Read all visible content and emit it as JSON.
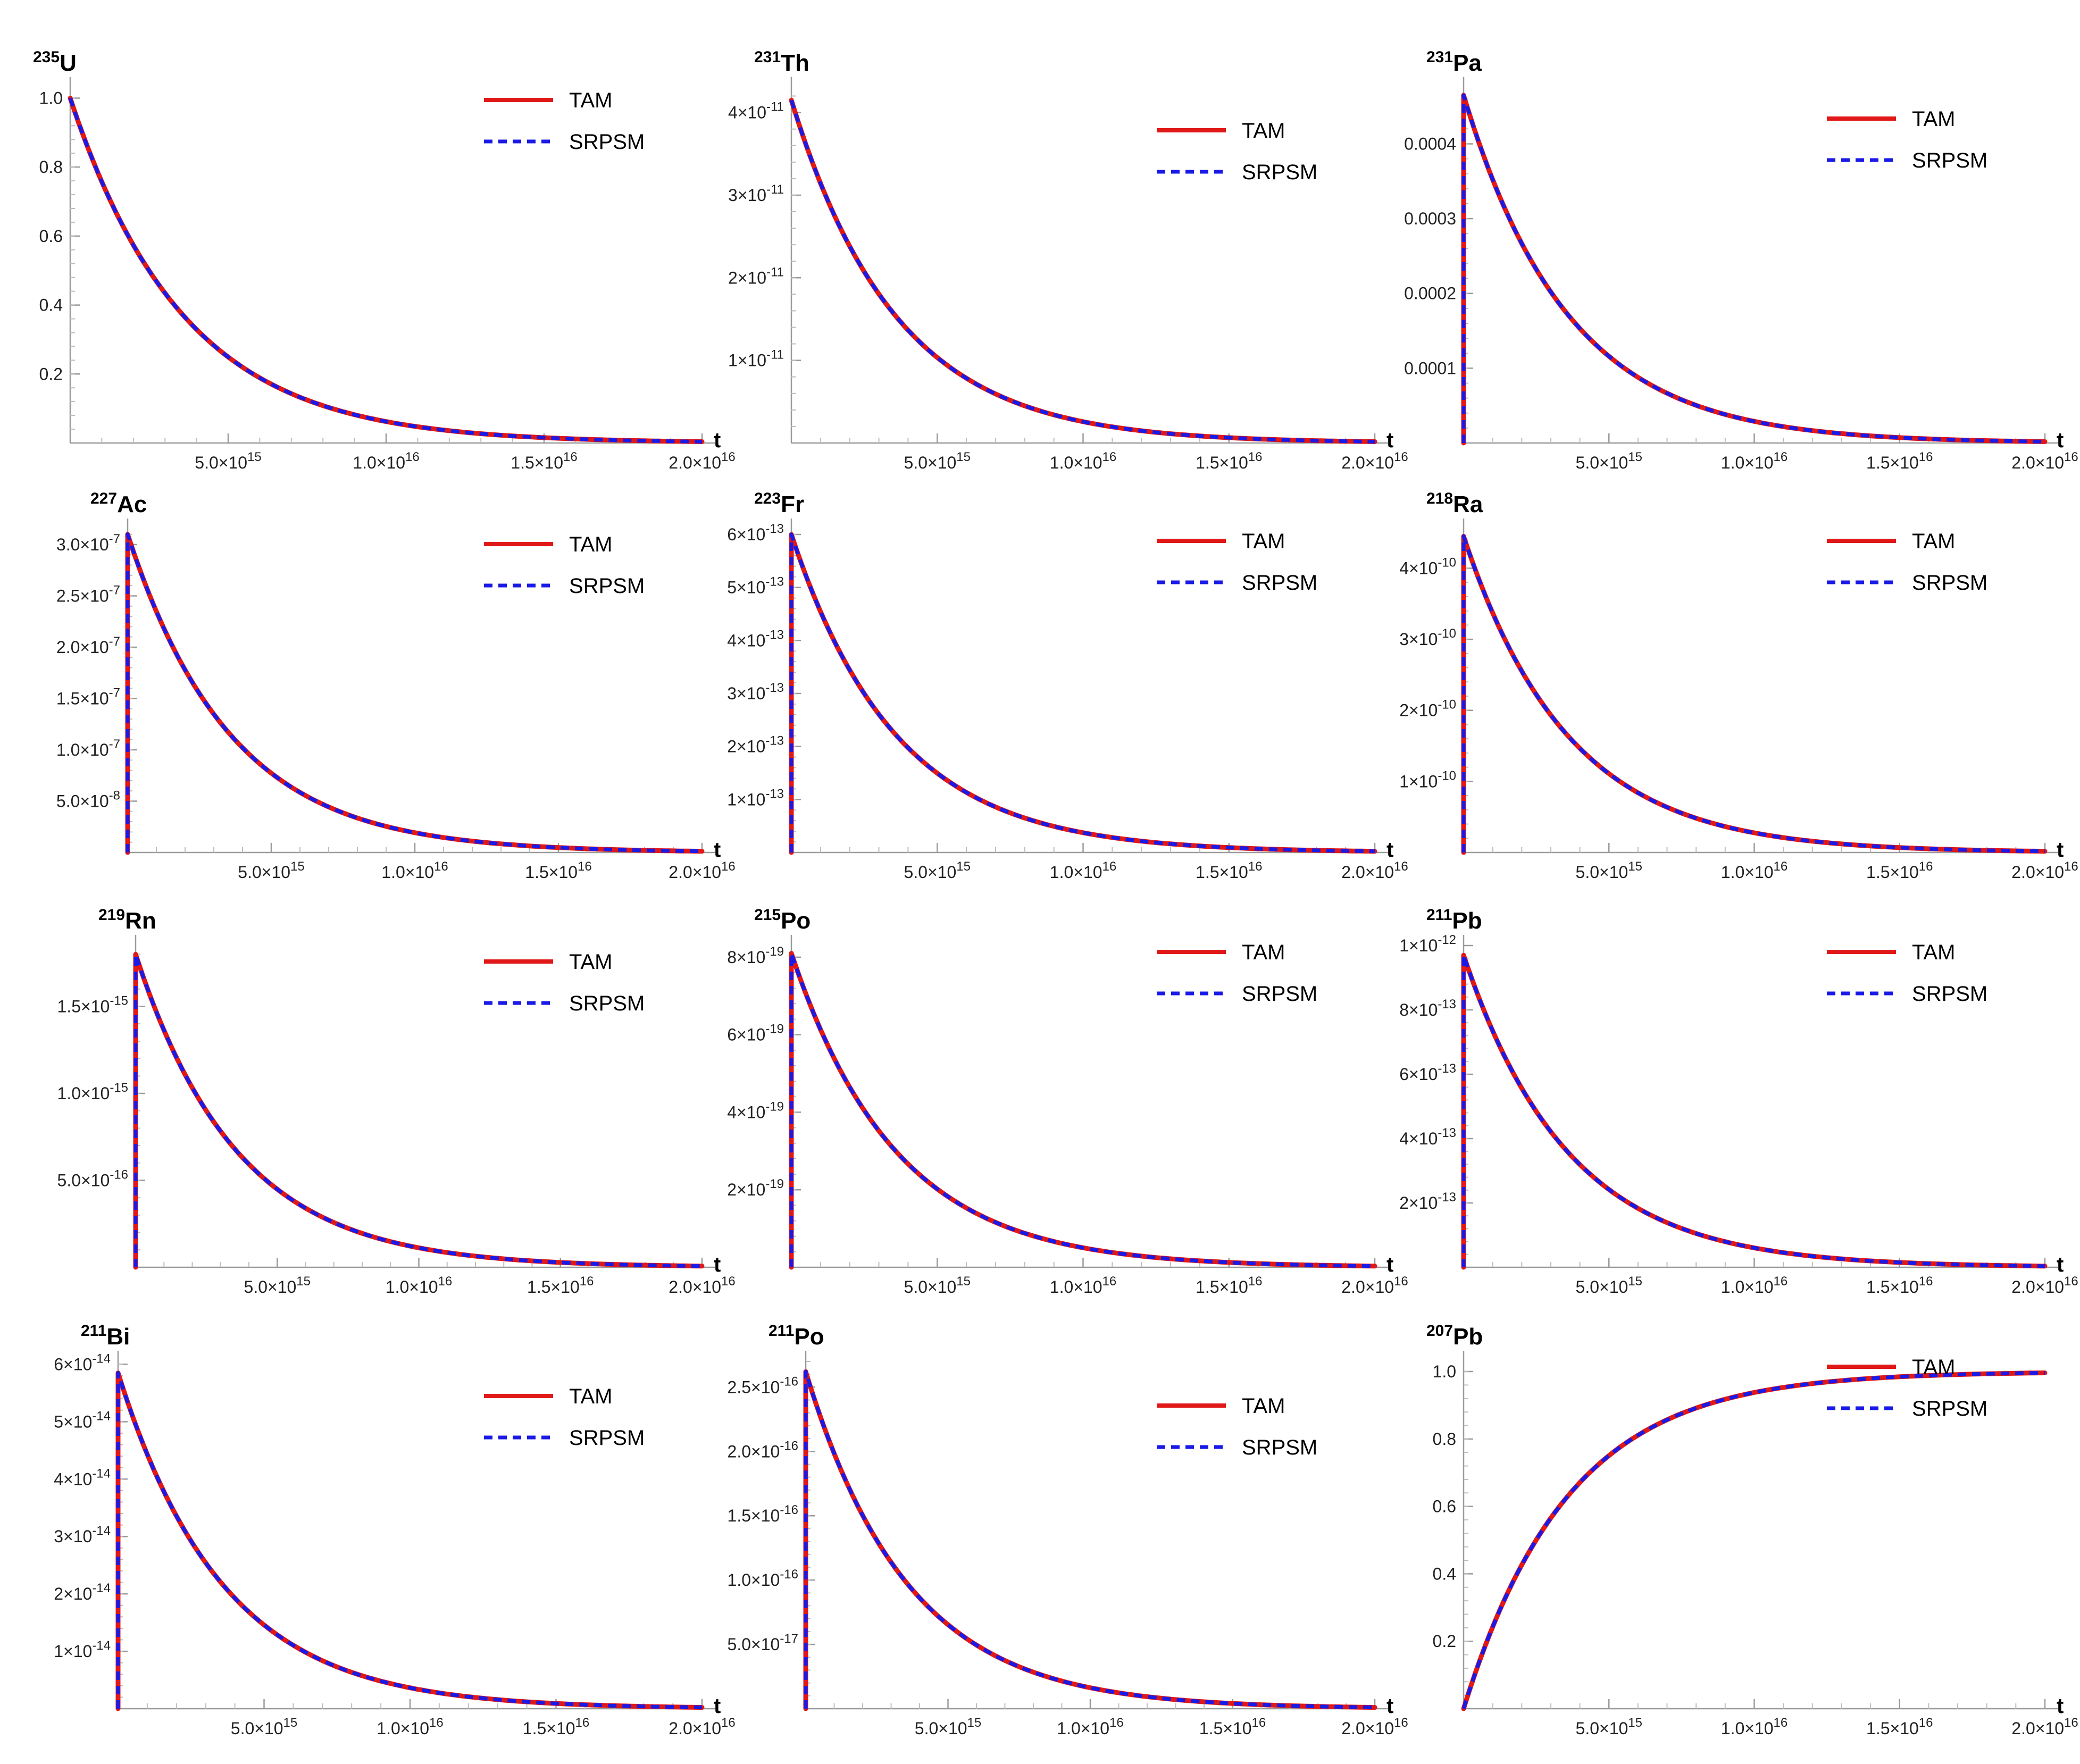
{
  "chart_data": [
    {
      "type": "line",
      "title_mass": "235",
      "title_elem": "U",
      "xlabel": "t",
      "legend": "top-right",
      "grid": false,
      "xlim": [
        0,
        2e+16
      ],
      "xticks": [
        "5.0×10^15",
        "1.0×10^16",
        "1.5×10^16",
        "2.0×10^16"
      ],
      "yticks": [
        {
          "v": 0.2,
          "m": "0.2"
        },
        {
          "v": 0.4,
          "m": "0.4"
        },
        {
          "v": 0.6,
          "m": "0.6"
        },
        {
          "v": 0.8,
          "m": "0.8"
        },
        {
          "v": 1.0,
          "m": "1.0"
        }
      ],
      "ylim": [
        0,
        1.03
      ],
      "peak": 1.0,
      "shape": "decay",
      "series": [
        {
          "name": "TAM",
          "color": "#e01818"
        },
        {
          "name": "SRPSM",
          "color": "#1a1ae6"
        }
      ]
    },
    {
      "type": "line",
      "title_mass": "231",
      "title_elem": "Th",
      "xlabel": "t",
      "legend": "top-right",
      "grid": false,
      "xlim": [
        0,
        2e+16
      ],
      "xticks": [
        "5.0×10^15",
        "1.0×10^16",
        "1.5×10^16",
        "2.0×10^16"
      ],
      "yticks": [
        {
          "v": 1e-11,
          "m": "1",
          "e": "-11"
        },
        {
          "v": 2e-11,
          "m": "2",
          "e": "-11"
        },
        {
          "v": 3e-11,
          "m": "3",
          "e": "-11"
        },
        {
          "v": 4e-11,
          "m": "4",
          "e": "-11"
        }
      ],
      "ylim": [
        0,
        4.3e-11
      ],
      "peak": 4.15e-11,
      "shape": "decay",
      "series": [
        {
          "name": "TAM",
          "color": "#e01818"
        },
        {
          "name": "SRPSM",
          "color": "#1a1ae6"
        }
      ]
    },
    {
      "type": "line",
      "title_mass": "231",
      "title_elem": "Pa",
      "xlabel": "t",
      "legend": "top-right",
      "grid": false,
      "xlim": [
        0,
        2e+16
      ],
      "xticks": [
        "5.0×10^15",
        "1.0×10^16",
        "1.5×10^16",
        "2.0×10^16"
      ],
      "yticks": [
        {
          "v": 0.0001,
          "m": "0.0001"
        },
        {
          "v": 0.0002,
          "m": "0.0002"
        },
        {
          "v": 0.0003,
          "m": "0.0003"
        },
        {
          "v": 0.0004,
          "m": "0.0004"
        }
      ],
      "ylim": [
        0,
        0.000475
      ],
      "peak": 0.000465,
      "shape": "spike",
      "series": [
        {
          "name": "TAM",
          "color": "#e01818"
        },
        {
          "name": "SRPSM",
          "color": "#1a1ae6"
        }
      ]
    },
    {
      "type": "line",
      "title_mass": "227",
      "title_elem": "Ac",
      "xlabel": "t",
      "legend": "top-right",
      "grid": false,
      "xlim": [
        0,
        2e+16
      ],
      "xticks": [
        "5.0×10^15",
        "1.0×10^16",
        "1.5×10^16",
        "2.0×10^16"
      ],
      "yticks": [
        {
          "v": 5e-08,
          "m": "5.0",
          "e": "-8"
        },
        {
          "v": 1e-07,
          "m": "1.0",
          "e": "-7"
        },
        {
          "v": 1.5e-07,
          "m": "1.5",
          "e": "-7"
        },
        {
          "v": 2e-07,
          "m": "2.0",
          "e": "-7"
        },
        {
          "v": 2.5e-07,
          "m": "2.5",
          "e": "-7"
        },
        {
          "v": 3e-07,
          "m": "3.0",
          "e": "-7"
        }
      ],
      "ylim": [
        0,
        3.15e-07
      ],
      "peak": 3.1e-07,
      "shape": "spike",
      "series": [
        {
          "name": "TAM",
          "color": "#e01818"
        },
        {
          "name": "SRPSM",
          "color": "#1a1ae6"
        }
      ]
    },
    {
      "type": "line",
      "title_mass": "223",
      "title_elem": "Fr",
      "xlabel": "t",
      "legend": "top-right",
      "grid": false,
      "xlim": [
        0,
        2e+16
      ],
      "xticks": [
        "5.0×10^15",
        "1.0×10^16",
        "1.5×10^16",
        "2.0×10^16"
      ],
      "yticks": [
        {
          "v": 1e-13,
          "m": "1",
          "e": "-13"
        },
        {
          "v": 2e-13,
          "m": "2",
          "e": "-13"
        },
        {
          "v": 3e-13,
          "m": "3",
          "e": "-13"
        },
        {
          "v": 4e-13,
          "m": "4",
          "e": "-13"
        },
        {
          "v": 5e-13,
          "m": "5",
          "e": "-13"
        },
        {
          "v": 6e-13,
          "m": "6",
          "e": "-13"
        }
      ],
      "ylim": [
        0,
        6.1e-13
      ],
      "peak": 6e-13,
      "shape": "spike",
      "series": [
        {
          "name": "TAM",
          "color": "#e01818"
        },
        {
          "name": "SRPSM",
          "color": "#1a1ae6"
        }
      ]
    },
    {
      "type": "line",
      "title_mass": "218",
      "title_elem": "Ra",
      "xlabel": "t",
      "legend": "top-right",
      "grid": false,
      "xlim": [
        0,
        2e+16
      ],
      "xticks": [
        "5.0×10^15",
        "1.0×10^16",
        "1.5×10^16",
        "2.0×10^16"
      ],
      "yticks": [
        {
          "v": 1e-10,
          "m": "1",
          "e": "-10"
        },
        {
          "v": 2e-10,
          "m": "2",
          "e": "-10"
        },
        {
          "v": 3e-10,
          "m": "3",
          "e": "-10"
        },
        {
          "v": 4e-10,
          "m": "4",
          "e": "-10"
        }
      ],
      "ylim": [
        0,
        4.55e-10
      ],
      "peak": 4.45e-10,
      "shape": "spike",
      "series": [
        {
          "name": "TAM",
          "color": "#e01818"
        },
        {
          "name": "SRPSM",
          "color": "#1a1ae6"
        }
      ]
    },
    {
      "type": "line",
      "title_mass": "219",
      "title_elem": "Rn",
      "xlabel": "t",
      "legend": "top-right",
      "grid": false,
      "xlim": [
        0,
        2e+16
      ],
      "xticks": [
        "5.0×10^15",
        "1.0×10^16",
        "1.5×10^16",
        "2.0×10^16"
      ],
      "yticks": [
        {
          "v": 5e-16,
          "m": "5.0",
          "e": "-16"
        },
        {
          "v": 1e-15,
          "m": "1.0",
          "e": "-15"
        },
        {
          "v": 1.5e-15,
          "m": "1.5",
          "e": "-15"
        }
      ],
      "ylim": [
        0,
        1.85e-15
      ],
      "peak": 1.8e-15,
      "shape": "spike",
      "series": [
        {
          "name": "TAM",
          "color": "#e01818"
        },
        {
          "name": "SRPSM",
          "color": "#1a1ae6"
        }
      ]
    },
    {
      "type": "line",
      "title_mass": "215",
      "title_elem": "Po",
      "xlabel": "t",
      "legend": "top-right",
      "grid": false,
      "xlim": [
        0,
        2e+16
      ],
      "xticks": [
        "5.0×10^15",
        "1.0×10^16",
        "1.5×10^16",
        "2.0×10^16"
      ],
      "yticks": [
        {
          "v": 2e-19,
          "m": "2",
          "e": "-19"
        },
        {
          "v": 4e-19,
          "m": "4",
          "e": "-19"
        },
        {
          "v": 6e-19,
          "m": "6",
          "e": "-19"
        },
        {
          "v": 8e-19,
          "m": "8",
          "e": "-19"
        }
      ],
      "ylim": [
        0,
        8.3e-19
      ],
      "peak": 8.1e-19,
      "shape": "spike",
      "series": [
        {
          "name": "TAM",
          "color": "#e01818"
        },
        {
          "name": "SRPSM",
          "color": "#1a1ae6"
        }
      ]
    },
    {
      "type": "line",
      "title_mass": "211",
      "title_elem": "Pb",
      "xlabel": "t",
      "legend": "top-right",
      "grid": false,
      "xlim": [
        0,
        2e+16
      ],
      "xticks": [
        "5.0×10^15",
        "1.0×10^16",
        "1.5×10^16",
        "2.0×10^16"
      ],
      "yticks": [
        {
          "v": 2e-13,
          "m": "2",
          "e": "-13"
        },
        {
          "v": 4e-13,
          "m": "4",
          "e": "-13"
        },
        {
          "v": 6e-13,
          "m": "6",
          "e": "-13"
        },
        {
          "v": 8e-13,
          "m": "8",
          "e": "-13"
        },
        {
          "v": 1e-12,
          "m": "1",
          "e": "-12"
        }
      ],
      "ylim": [
        0,
        1e-12
      ],
      "peak": 9.7e-13,
      "shape": "spike",
      "series": [
        {
          "name": "TAM",
          "color": "#e01818"
        },
        {
          "name": "SRPSM",
          "color": "#1a1ae6"
        }
      ]
    },
    {
      "type": "line",
      "title_mass": "211",
      "title_elem": "Bi",
      "xlabel": "t",
      "legend": "top-right",
      "grid": false,
      "xlim": [
        0,
        2e+16
      ],
      "xticks": [
        "5.0×10^15",
        "1.0×10^16",
        "1.5×10^16",
        "2.0×10^16"
      ],
      "yticks": [
        {
          "v": 1e-14,
          "m": "1",
          "e": "-14"
        },
        {
          "v": 2e-14,
          "m": "2",
          "e": "-14"
        },
        {
          "v": 3e-14,
          "m": "3",
          "e": "-14"
        },
        {
          "v": 4e-14,
          "m": "4",
          "e": "-14"
        },
        {
          "v": 5e-14,
          "m": "5",
          "e": "-14"
        },
        {
          "v": 6e-14,
          "m": "6",
          "e": "-14"
        }
      ],
      "ylim": [
        0,
        6.05e-14
      ],
      "peak": 5.85e-14,
      "shape": "spike",
      "series": [
        {
          "name": "TAM",
          "color": "#e01818"
        },
        {
          "name": "SRPSM",
          "color": "#1a1ae6"
        }
      ]
    },
    {
      "type": "line",
      "title_mass": "211",
      "title_elem": "Po",
      "xlabel": "t",
      "legend": "top-right",
      "grid": false,
      "xlim": [
        0,
        2e+16
      ],
      "xticks": [
        "5.0×10^15",
        "1.0×10^16",
        "1.5×10^16",
        "2.0×10^16"
      ],
      "yticks": [
        {
          "v": 5e-17,
          "m": "5.0",
          "e": "-17"
        },
        {
          "v": 1e-16,
          "m": "1.0",
          "e": "-16"
        },
        {
          "v": 1.5e-16,
          "m": "1.5",
          "e": "-16"
        },
        {
          "v": 2e-16,
          "m": "2.0",
          "e": "-16"
        },
        {
          "v": 2.5e-16,
          "m": "2.5",
          "e": "-16"
        }
      ],
      "ylim": [
        0,
        2.7e-16
      ],
      "peak": 2.62e-16,
      "shape": "spike",
      "series": [
        {
          "name": "TAM",
          "color": "#e01818"
        },
        {
          "name": "SRPSM",
          "color": "#1a1ae6"
        }
      ]
    },
    {
      "type": "line",
      "title_mass": "207",
      "title_elem": "Pb",
      "xlabel": "t",
      "legend": "top-right",
      "grid": false,
      "xlim": [
        0,
        2e+16
      ],
      "xticks": [
        "5.0×10^15",
        "1.0×10^16",
        "1.5×10^16",
        "2.0×10^16"
      ],
      "yticks": [
        {
          "v": 0.2,
          "m": "0.2"
        },
        {
          "v": 0.4,
          "m": "0.4"
        },
        {
          "v": 0.6,
          "m": "0.6"
        },
        {
          "v": 0.8,
          "m": "0.8"
        },
        {
          "v": 1.0,
          "m": "1.0"
        }
      ],
      "ylim": [
        0,
        1.03
      ],
      "peak": 1.0,
      "shape": "growth",
      "series": [
        {
          "name": "TAM",
          "color": "#e01818"
        },
        {
          "name": "SRPSM",
          "color": "#1a1ae6"
        }
      ]
    }
  ]
}
